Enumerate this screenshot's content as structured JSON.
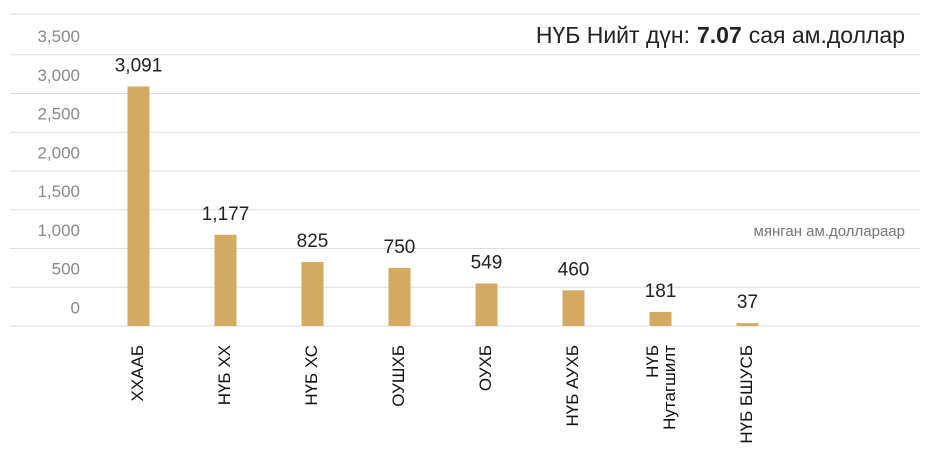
{
  "chart_data": {
    "type": "bar",
    "title": {
      "prefix": "НҮБ Нийт дүн:",
      "value": 7.07,
      "suffix": "сая ам.доллар"
    },
    "unit_label": "мянган ам.доллараар",
    "categories": [
      "ХХААБ",
      "НҮБ ХХ",
      "НҮБ ХС",
      "ОУШХБ",
      "ОУХБ",
      "НҮБ АУХБ",
      [
        "НҮБ",
        "Нутагшилт"
      ],
      "НҮБ БШУСБ"
    ],
    "values": [
      3091,
      1177,
      825,
      750,
      549,
      460,
      181,
      37
    ],
    "value_labels": [
      "3,091",
      "1,177",
      "825",
      "750",
      "549",
      "460",
      "181",
      "37"
    ],
    "color": "#d4aa62",
    "ylim": [
      0,
      4000
    ],
    "yticks": [
      0,
      500,
      {
        "value": 1000,
        "label": "1,000"
      },
      {
        "value": 1500,
        "label": "1,500"
      },
      {
        "value": 2000,
        "label": "2,000"
      },
      {
        "value": 2500,
        "label": "2,500"
      },
      {
        "value": 3000,
        "label": "3,000"
      },
      {
        "value": 3500,
        "label": "3,500"
      }
    ],
    "grid": true
  }
}
